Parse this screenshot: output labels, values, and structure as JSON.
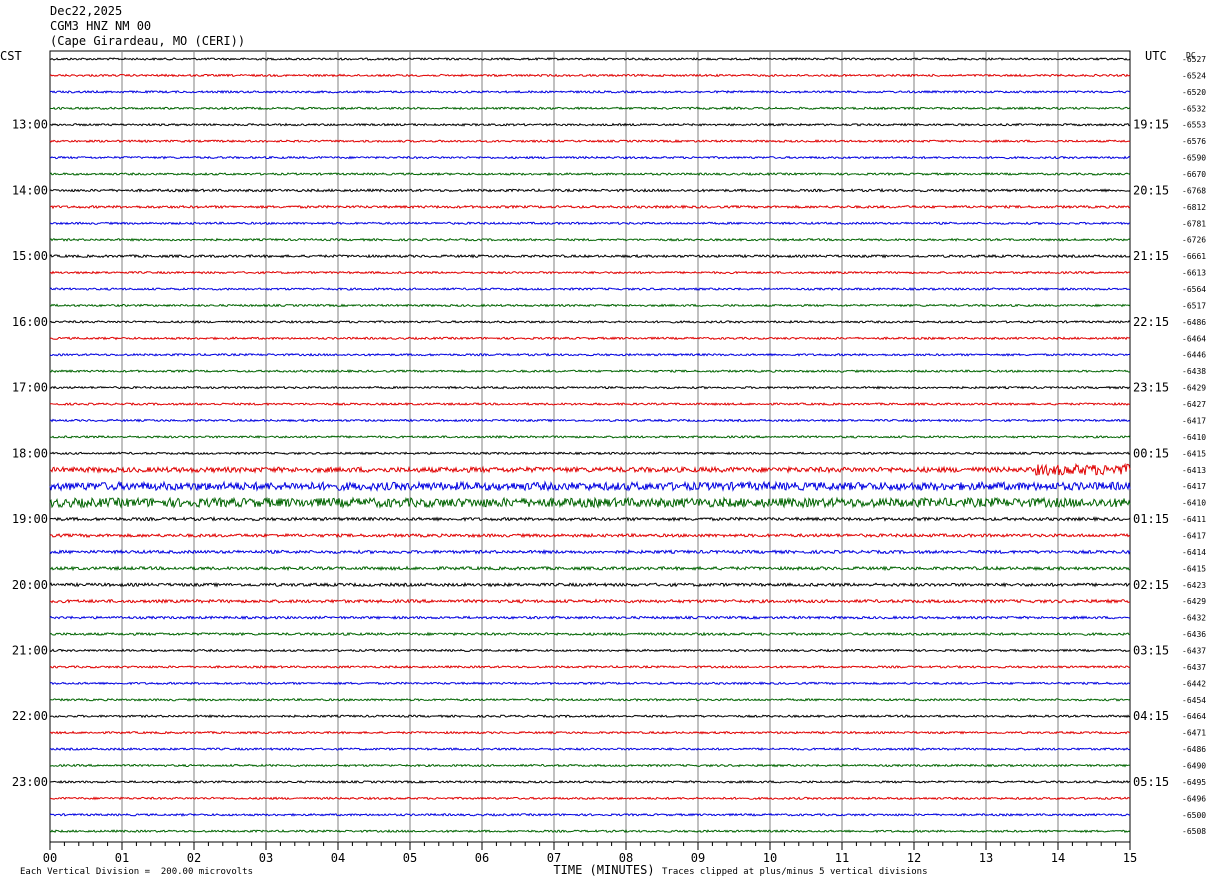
{
  "header": {
    "date": "Dec22,2025",
    "station": "CGM3 HNZ NM 00",
    "location": "(Cape Girardeau, MO (CERI))"
  },
  "labels": {
    "left_tz": "CST",
    "right_tz": "UTC",
    "dc": "DC"
  },
  "footer": {
    "division": "Each Vertical Division =  200.00 microvolts",
    "xlabel": "TIME (MINUTES)",
    "clip_note": "Traces clipped at plus/minus 5 vertical divisions"
  },
  "colors": {
    "trace_cycle": [
      "#000000",
      "#e00000",
      "#0000e0",
      "#006400"
    ],
    "grid": "#808080"
  },
  "chart_data": {
    "type": "line",
    "title": "",
    "xlabel": "TIME (MINUTES)",
    "xlim": [
      0,
      15
    ],
    "x_ticks": [
      "00",
      "01",
      "02",
      "03",
      "04",
      "05",
      "06",
      "07",
      "08",
      "09",
      "10",
      "11",
      "12",
      "13",
      "14",
      "15"
    ],
    "left_hour_labels": [
      "13:00",
      "14:00",
      "15:00",
      "16:00",
      "17:00",
      "18:00",
      "19:00",
      "20:00",
      "21:00",
      "22:00",
      "23:00"
    ],
    "right_hour_labels": [
      "19:15",
      "20:15",
      "21:15",
      "22:15",
      "23:15",
      "00:15",
      "01:15",
      "02:15",
      "03:15",
      "04:15",
      "05:15"
    ],
    "dc_offsets": [
      "-6527",
      "-6524",
      "-6520",
      "-6532",
      "-6553",
      "-6576",
      "-6590",
      "-6670",
      "-6768",
      "-6812",
      "-6781",
      "-6726",
      "-6661",
      "-6613",
      "-6564",
      "-6517",
      "-6486",
      "-6464",
      "-6446",
      "-6438",
      "-6429",
      "-6427",
      "-6417",
      "-6410",
      "-6415",
      "-6413",
      "-6417",
      "-6410",
      "-6411",
      "-6417",
      "-6414",
      "-6415",
      "-6423",
      "-6429",
      "-6432",
      "-6436",
      "-6437",
      "-6437",
      "-6442",
      "-6454",
      "-6464",
      "-6471",
      "-6486",
      "-6490",
      "-6495",
      "-6496",
      "-6500",
      "-6508"
    ],
    "trace_noise": [
      1,
      1,
      1,
      1,
      1,
      1,
      1,
      1,
      1.2,
      1.2,
      1,
      1,
      1.2,
      1,
      1,
      1,
      1,
      1,
      1,
      1,
      1,
      1,
      1,
      1,
      1,
      2.5,
      4,
      4.5,
      1.5,
      1.5,
      1.5,
      1.5,
      1.5,
      1.5,
      1.2,
      1.2,
      1,
      1,
      1,
      1,
      1,
      1,
      1,
      1,
      1,
      1,
      1,
      1
    ],
    "trace_count": 48,
    "traces_per_hour": 4,
    "grid": true
  }
}
